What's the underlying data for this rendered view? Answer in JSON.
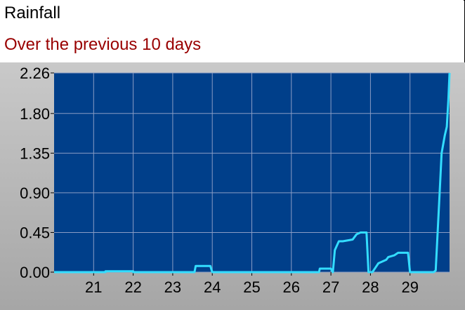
{
  "header": {
    "title": "Rainfall",
    "subtitle": "Over the previous 10 days"
  },
  "colors": {
    "plot_background": "#003f8a",
    "line": "#33ddff",
    "grid": "#8a9cc4",
    "subtitle": "#990000"
  },
  "chart_data": {
    "type": "line",
    "title": "Rainfall",
    "subtitle": "Over the previous 10 days",
    "xlabel": "",
    "ylabel": "",
    "xlim": [
      20,
      30
    ],
    "ylim": [
      0,
      2.26
    ],
    "grid": true,
    "x_ticks": [
      21,
      22,
      23,
      24,
      25,
      26,
      27,
      28,
      29
    ],
    "x_tick_labels": [
      "21",
      "22",
      "23",
      "24",
      "25",
      "26",
      "27",
      "28",
      "29"
    ],
    "y_ticks": [
      0.0,
      0.45,
      0.9,
      1.35,
      1.8,
      2.26
    ],
    "y_tick_labels": [
      "0.00",
      "0.45",
      "0.90",
      "1.35",
      "1.80",
      "2.26"
    ],
    "series": [
      {
        "x": [
          20.0,
          21.3,
          21.3,
          22.0,
          22.0,
          23.55,
          23.58,
          23.95,
          24.0,
          26.7,
          26.72,
          27.0,
          27.05,
          27.1,
          27.2,
          27.3,
          27.55,
          27.6,
          27.65,
          27.75,
          27.9,
          27.95,
          28.05,
          28.2,
          28.3,
          28.4,
          28.45,
          28.6,
          28.7,
          28.95,
          29.0,
          29.6,
          29.65,
          29.75,
          29.8,
          29.88,
          29.93,
          29.97,
          30.0
        ],
        "y": [
          0.0,
          0.0,
          0.01,
          0.01,
          0.0,
          0.0,
          0.07,
          0.07,
          0.0,
          0.0,
          0.04,
          0.04,
          0.0,
          0.25,
          0.35,
          0.35,
          0.37,
          0.4,
          0.43,
          0.45,
          0.45,
          0.0,
          0.0,
          0.1,
          0.12,
          0.14,
          0.17,
          0.19,
          0.22,
          0.22,
          0.0,
          0.0,
          0.02,
          0.9,
          1.35,
          1.55,
          1.65,
          1.95,
          2.26
        ]
      }
    ]
  }
}
